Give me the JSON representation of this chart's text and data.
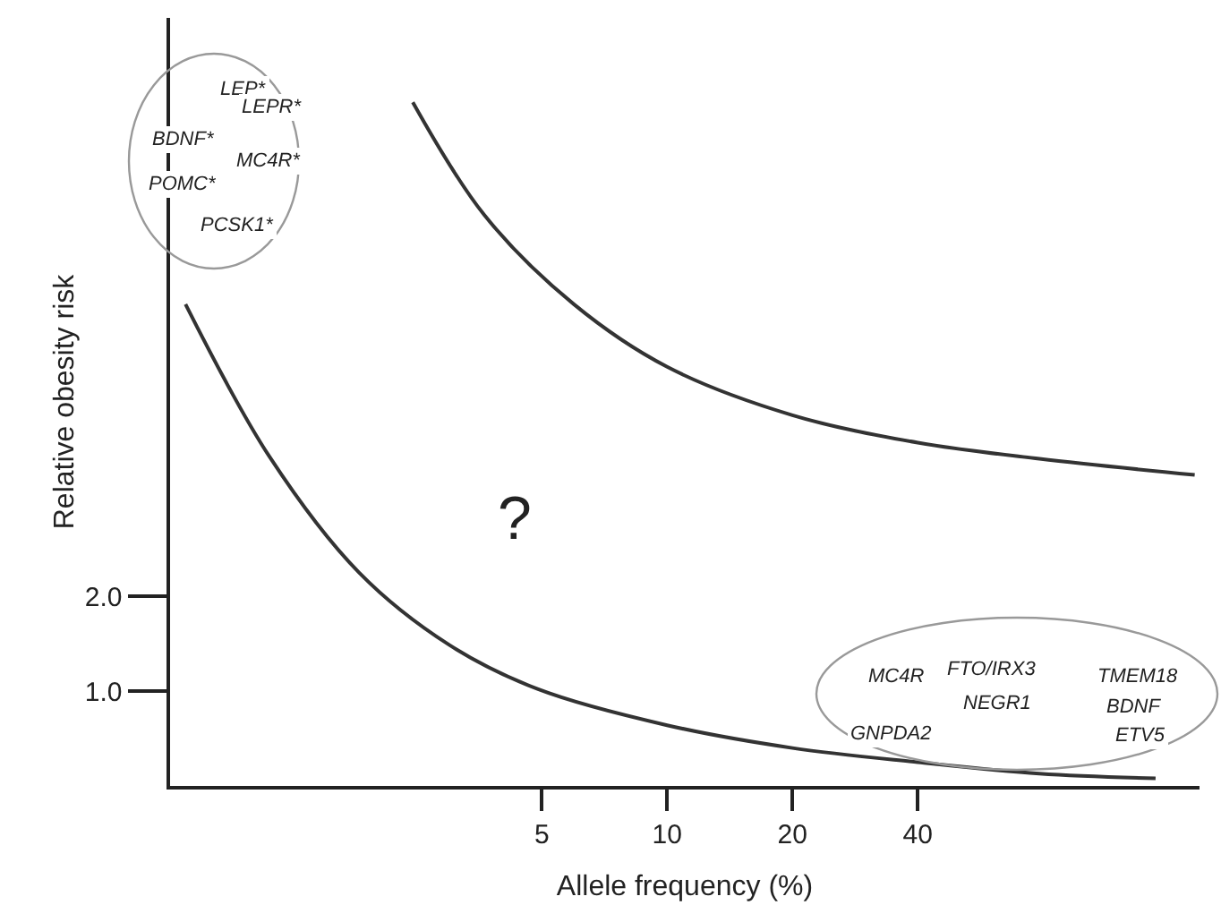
{
  "chart_data": {
    "type": "line",
    "xlabel": "Allele frequency (%)",
    "ylabel": "Relative obesity risk",
    "log": "x",
    "xlim": [
      0.64,
      190
    ],
    "ylim": [
      0,
      8.1
    ],
    "xticks": [
      5,
      10,
      20,
      40
    ],
    "yticks": [
      {
        "value": 1,
        "label": "1.0"
      },
      {
        "value": 2,
        "label": "2.0"
      }
    ],
    "marker": "none",
    "line_style": "solid",
    "series": [
      {
        "color": "#333333",
        "x": [
          0.697,
          1.11,
          1.82,
          2.99,
          4.9,
          10,
          20,
          40,
          78.4,
          149
        ],
        "values": [
          5.08,
          3.47,
          2.25,
          1.49,
          1.02,
          0.64,
          0.4,
          0.25,
          0.13,
          0.08
        ]
      },
      {
        "color": "#333333",
        "x": [
          2.45,
          3.64,
          5.97,
          10,
          20,
          40,
          78.4,
          185
        ],
        "values": [
          7.21,
          6.02,
          5.08,
          4.42,
          3.91,
          3.62,
          3.45,
          3.28
        ]
      }
    ],
    "annotations": [
      "LEP*",
      "LEPR*",
      "BDNF*",
      "MC4R*",
      "POMC*",
      "PCSK1*",
      "?",
      "MC4R",
      "FTO/IRX3",
      "NEGR1",
      "GNPDA2",
      "TMEM18",
      "BDNF",
      "ETV5"
    ]
  }
}
